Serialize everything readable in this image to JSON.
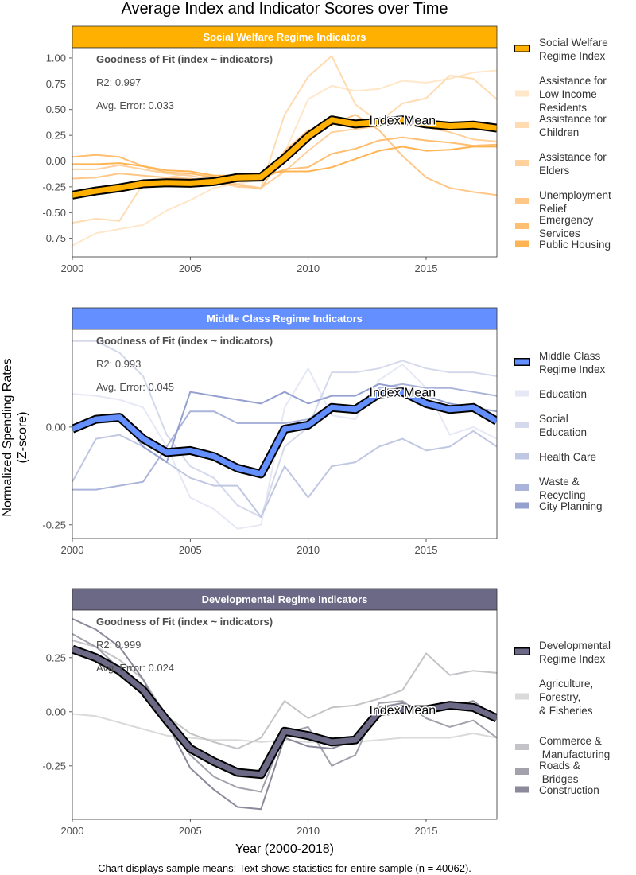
{
  "title": "Average Index and Indicator Scores over Time",
  "xlabel": "Year (2000-2018)",
  "ylabel_line1": "Normalized Spending Rates",
  "ylabel_line2": "(Z-score)",
  "caption": "Chart displays sample means; Text shows statistics for entire sample (n = 40062).",
  "fit_title": "Goodness of Fit (index ~ indicators)",
  "mean_label": "Index Mean",
  "chart_data": [
    {
      "type": "line",
      "title": "Social Welfare Regime Indicators",
      "strip_color": "#FFB000",
      "index_color": "#FFB000",
      "r2": "R2: 0.997",
      "avg_error": "Avg. Error: 0.033",
      "x": [
        2000,
        2001,
        2002,
        2003,
        2004,
        2005,
        2006,
        2007,
        2008,
        2009,
        2010,
        2011,
        2012,
        2013,
        2014,
        2015,
        2016,
        2017,
        2018
      ],
      "xlim": [
        2000,
        2018
      ],
      "xticks": [
        2000,
        2005,
        2010,
        2015
      ],
      "ylim": [
        -0.93,
        1.1
      ],
      "yticks": [
        -0.75,
        -0.5,
        -0.25,
        0.0,
        0.25,
        0.5,
        0.75,
        1.0
      ],
      "ytick_labels": [
        "-0.75",
        "-0.50",
        "-0.25",
        "0.00",
        "0.25",
        "0.50",
        "0.75",
        "1.00"
      ],
      "index": {
        "name": "Social Welfare Regime Index",
        "values": [
          -0.33,
          -0.29,
          -0.26,
          -0.22,
          -0.21,
          -0.215,
          -0.2,
          -0.16,
          -0.155,
          0.03,
          0.24,
          0.4,
          0.36,
          0.38,
          0.4,
          0.36,
          0.34,
          0.35,
          0.32
        ]
      },
      "series": [
        {
          "name": "Assistance for Low Income Residents",
          "color": "#FFE7C9",
          "values": [
            -0.82,
            -0.7,
            -0.66,
            -0.62,
            -0.48,
            -0.38,
            -0.26,
            -0.22,
            -0.18,
            0.08,
            0.6,
            0.73,
            0.68,
            0.7,
            0.78,
            0.76,
            0.8,
            0.86,
            0.88
          ]
        },
        {
          "name": "Assistance for Children",
          "color": "#FFDBB2",
          "values": [
            -0.6,
            -0.56,
            -0.58,
            -0.22,
            -0.16,
            -0.12,
            -0.15,
            -0.22,
            -0.26,
            0.45,
            0.82,
            1.02,
            0.55,
            0.38,
            0.56,
            0.61,
            0.83,
            0.8,
            0.6
          ]
        },
        {
          "name": "Assistance for Elders",
          "color": "#FFD19F",
          "values": [
            -0.08,
            -0.08,
            -0.04,
            -0.08,
            -0.12,
            -0.14,
            -0.19,
            -0.25,
            -0.26,
            -0.1,
            0.1,
            0.28,
            0.31,
            0.34,
            0.36,
            0.33,
            0.28,
            0.21,
            0.19
          ]
        },
        {
          "name": "Unemployment Relief",
          "color": "#FFC787",
          "values": [
            -0.17,
            -0.16,
            -0.12,
            -0.14,
            -0.16,
            -0.17,
            -0.2,
            -0.23,
            -0.27,
            0.1,
            0.3,
            0.35,
            0.45,
            0.3,
            0.05,
            -0.16,
            -0.26,
            -0.3,
            -0.33
          ]
        },
        {
          "name": "Emergency Services",
          "color": "#FFBE70",
          "values": [
            0.04,
            0.06,
            0.04,
            -0.05,
            -0.11,
            -0.12,
            -0.16,
            -0.16,
            -0.17,
            -0.08,
            -0.06,
            0.07,
            0.12,
            0.2,
            0.23,
            0.2,
            0.18,
            0.15,
            0.16
          ]
        },
        {
          "name": "Public Housing",
          "color": "#FFB453",
          "values": [
            -0.03,
            -0.03,
            -0.02,
            -0.05,
            -0.09,
            -0.1,
            -0.14,
            -0.14,
            -0.12,
            -0.1,
            -0.1,
            -0.06,
            0.02,
            0.1,
            0.14,
            0.1,
            0.11,
            0.14,
            0.14
          ]
        }
      ]
    },
    {
      "type": "line",
      "title": "Middle Class Regime Indicators",
      "strip_color": "#648FFF",
      "index_color": "#648FFF",
      "r2": "R2: 0.993",
      "avg_error": "Avg. Error: 0.045",
      "x": [
        2000,
        2001,
        2002,
        2003,
        2004,
        2005,
        2006,
        2007,
        2008,
        2009,
        2010,
        2011,
        2012,
        2013,
        2014,
        2015,
        2016,
        2017,
        2018
      ],
      "xlim": [
        2000,
        2018
      ],
      "xticks": [
        2000,
        2005,
        2010,
        2015
      ],
      "ylim": [
        -0.285,
        0.25
      ],
      "yticks": [
        -0.25,
        0.0
      ],
      "ytick_labels": [
        "-0.25",
        "0.00"
      ],
      "index": {
        "name": "Middle Class Regime Index",
        "values": [
          -0.005,
          0.02,
          0.025,
          -0.03,
          -0.065,
          -0.06,
          -0.075,
          -0.105,
          -0.12,
          -0.005,
          0.005,
          0.05,
          0.045,
          0.085,
          0.09,
          0.06,
          0.045,
          0.05,
          0.015
        ]
      },
      "series": [
        {
          "name": "Education",
          "color": "#E6E9F5",
          "values": [
            0.085,
            0.08,
            0.07,
            0.05,
            -0.05,
            -0.18,
            -0.21,
            -0.26,
            -0.25,
            0.05,
            0.15,
            0.03,
            0.02,
            0.12,
            0.16,
            0.1,
            -0.02,
            0.0,
            -0.03
          ]
        },
        {
          "name": "Social Education",
          "color": "#D5D9EC",
          "values": [
            0.22,
            0.22,
            0.19,
            0.13,
            -0.02,
            -0.1,
            -0.13,
            -0.2,
            -0.23,
            -0.05,
            0.0,
            0.14,
            0.14,
            0.15,
            0.17,
            0.15,
            0.14,
            0.14,
            0.13
          ]
        },
        {
          "name": "Health Care",
          "color": "#C0C7E2",
          "values": [
            -0.14,
            -0.03,
            -0.02,
            -0.05,
            -0.09,
            -0.13,
            -0.15,
            -0.15,
            -0.23,
            -0.1,
            -0.18,
            -0.1,
            -0.09,
            -0.05,
            -0.03,
            -0.06,
            -0.05,
            -0.01,
            -0.05
          ]
        },
        {
          "name": "Waste & Recycling",
          "color": "#AAB3D9",
          "values": [
            -0.16,
            -0.16,
            -0.15,
            -0.14,
            -0.05,
            0.04,
            0.04,
            0.01,
            0.01,
            0.01,
            0.02,
            0.06,
            0.05,
            0.1,
            0.11,
            0.1,
            0.1,
            0.09,
            0.08
          ]
        },
        {
          "name": "City Planning",
          "color": "#94A0CF",
          "values": [
            0.0,
            0.02,
            0.03,
            -0.05,
            -0.09,
            0.09,
            0.08,
            0.07,
            0.06,
            0.09,
            0.06,
            0.08,
            0.08,
            0.11,
            0.1,
            0.08,
            0.06,
            0.05,
            0.04
          ]
        }
      ]
    },
    {
      "type": "line",
      "title": "Developmental Regime Indicators",
      "strip_color": "#6B6985",
      "index_color": "#6B6985",
      "r2": "R2: 0.999",
      "avg_error": "Avg. Error: 0.024",
      "x": [
        2000,
        2001,
        2002,
        2003,
        2004,
        2005,
        2006,
        2007,
        2008,
        2009,
        2010,
        2011,
        2012,
        2013,
        2014,
        2015,
        2016,
        2017,
        2018
      ],
      "xlim": [
        2000,
        2018
      ],
      "xticks": [
        2000,
        2005,
        2010,
        2015
      ],
      "ylim": [
        -0.497,
        0.47
      ],
      "yticks": [
        -0.25,
        0.0,
        0.25
      ],
      "ytick_labels": [
        "-0.25",
        "0.00",
        "0.25"
      ],
      "index": {
        "name": "Developmental Regime Index",
        "values": [
          0.29,
          0.25,
          0.19,
          0.1,
          -0.04,
          -0.17,
          -0.23,
          -0.28,
          -0.29,
          -0.09,
          -0.11,
          -0.14,
          -0.13,
          0.0,
          0.01,
          0.01,
          0.03,
          0.02,
          -0.03
        ]
      },
      "series": [
        {
          "name": "Agriculture, Forestry, & Fisheries",
          "color": "#DADADA",
          "values": [
            -0.01,
            -0.02,
            -0.05,
            -0.08,
            -0.11,
            -0.12,
            -0.13,
            -0.13,
            -0.14,
            -0.13,
            -0.14,
            -0.14,
            -0.14,
            -0.13,
            -0.12,
            -0.12,
            -0.12,
            -0.1,
            -0.12
          ]
        },
        {
          "name": "Commerce & Manufacturing",
          "color": "#C4C4C8",
          "values": [
            0.33,
            0.3,
            0.24,
            0.15,
            -0.02,
            -0.1,
            -0.14,
            -0.17,
            -0.12,
            0.05,
            -0.03,
            0.02,
            0.03,
            0.06,
            0.1,
            0.27,
            0.17,
            0.19,
            0.18
          ]
        },
        {
          "name": "Roads & Bridges",
          "color": "#A3A2AC",
          "values": [
            0.36,
            0.3,
            0.2,
            0.1,
            -0.05,
            -0.2,
            -0.3,
            -0.35,
            -0.37,
            -0.1,
            -0.07,
            -0.25,
            -0.2,
            0.04,
            0.05,
            -0.03,
            -0.07,
            -0.04,
            -0.12
          ]
        },
        {
          "name": "Construction",
          "color": "#8B899A",
          "values": [
            0.43,
            0.38,
            0.3,
            0.15,
            -0.05,
            -0.26,
            -0.36,
            -0.44,
            -0.45,
            -0.12,
            -0.16,
            -0.17,
            -0.13,
            0.02,
            0.04,
            0.0,
            0.02,
            0.05,
            -0.03
          ]
        }
      ]
    }
  ]
}
